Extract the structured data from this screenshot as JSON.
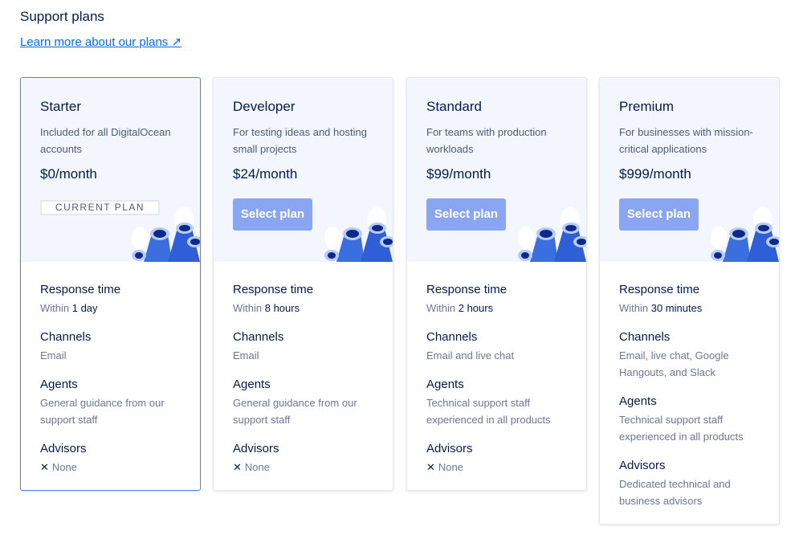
{
  "page": {
    "title": "Support plans",
    "learn_more": "Learn more about our plans ↗"
  },
  "colors": {
    "accent": "#0069ff",
    "button": "#8aa6f2",
    "header_bg": "#f3f6fd",
    "current_border": "#5b7cf5"
  },
  "labels": {
    "response": "Response time",
    "channels": "Channels",
    "agents": "Agents",
    "advisors": "Advisors"
  },
  "plans": [
    {
      "name": "Starter",
      "desc": "Included for all DigitalOcean accounts",
      "price": "$0/month",
      "action": "CURRENT PLAN",
      "response_prefix": "Within ",
      "response": "1 day",
      "channels": "Email",
      "agents": "General guidance from our support staff",
      "advisors": "None",
      "advisors_icon": "x-icon"
    },
    {
      "name": "Developer",
      "desc": "For testing ideas and hosting small projects",
      "price": "$24/month",
      "action": "Select plan",
      "response_prefix": "Within ",
      "response": "8 hours",
      "channels": "Email",
      "agents": "General guidance from our support staff",
      "advisors": "None",
      "advisors_icon": "x-icon"
    },
    {
      "name": "Standard",
      "desc": "For teams with production workloads",
      "price": "$99/month",
      "action": "Select plan",
      "response_prefix": "Within ",
      "response": "2 hours",
      "channels": "Email and live chat",
      "agents": "Technical support staff experienced in all products",
      "advisors": "None",
      "advisors_icon": "x-icon"
    },
    {
      "name": "Premium",
      "desc": "For businesses with mission-critical applications",
      "price": "$999/month",
      "action": "Select plan",
      "response_prefix": "Within ",
      "response": "30 minutes",
      "channels": "Email, live chat, Google Hangouts, and Slack",
      "agents": "Technical support staff experienced in all products",
      "advisors": "Dedicated technical and business advisors"
    }
  ]
}
